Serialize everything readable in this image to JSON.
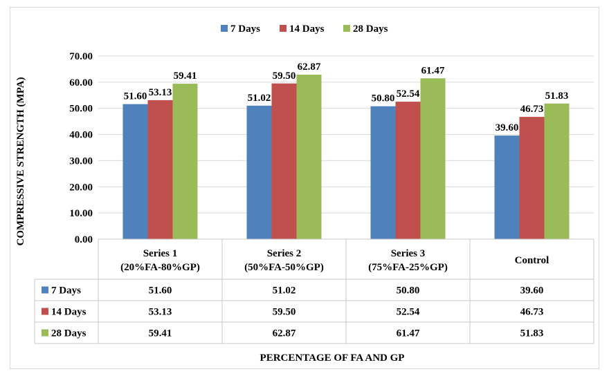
{
  "chart_data": {
    "type": "bar",
    "title": "",
    "xlabel": "PERCENTAGE OF FA AND GP",
    "ylabel": "COMPRESSIVE STRENGTH (MPA)",
    "ylim": [
      0,
      70
    ],
    "yticks": [
      "0.00",
      "10.00",
      "20.00",
      "30.00",
      "40.00",
      "50.00",
      "60.00",
      "70.00"
    ],
    "grid": true,
    "legend": "top",
    "categories": [
      [
        "Series 1",
        "(20%FA-80%GP)"
      ],
      [
        "Series 2",
        "(50%FA-50%GP)"
      ],
      [
        "Series 3",
        "(75%FA-25%GP)"
      ],
      [
        "Control"
      ]
    ],
    "series": [
      {
        "name": "7 Days",
        "color": "#4f81bd",
        "values": [
          51.6,
          51.02,
          50.8,
          39.6
        ]
      },
      {
        "name": "14 Days",
        "color": "#c0504d",
        "values": [
          53.13,
          59.5,
          52.54,
          46.73
        ]
      },
      {
        "name": "28 Days",
        "color": "#9bbb59",
        "values": [
          59.41,
          62.87,
          61.47,
          51.83
        ]
      }
    ],
    "data_table": true
  }
}
